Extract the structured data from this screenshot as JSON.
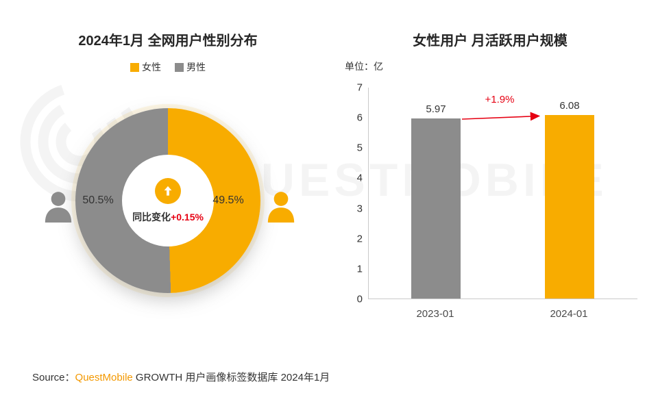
{
  "colors": {
    "female": "#F8AC00",
    "male": "#8C8C8C",
    "accent_red": "#E60012",
    "brand_orange": "#F39800",
    "text": "#333333"
  },
  "watermark": "QUESTMOBILE",
  "left_chart": {
    "title": "2024年1月 全网用户性别分布",
    "legend": [
      {
        "label": "女性",
        "color": "#F8AC00"
      },
      {
        "label": "男性",
        "color": "#8C8C8C"
      }
    ],
    "male_pct": "50.5%",
    "female_pct": "49.5%",
    "center_label": "同比变化",
    "center_change": "+0.15%"
  },
  "right_chart": {
    "title": "女性用户 月活跃用户规模",
    "unit": "单位：亿",
    "change_label": "+1.9%",
    "categories": [
      "2023-01",
      "2024-01"
    ],
    "values": [
      "5.97",
      "6.08"
    ]
  },
  "source": {
    "prefix": "Source：",
    "brand": "QuestMobile",
    "suffix": " GROWTH 用户画像标签数据库 2024年1月"
  },
  "chart_data": [
    {
      "type": "pie",
      "donut": true,
      "title": "2024年1月 全网用户性别分布",
      "labels": [
        "女性",
        "男性"
      ],
      "values": [
        49.5,
        50.5
      ],
      "colors": [
        "#F8AC00",
        "#8C8C8C"
      ],
      "annotation": "同比变化+0.15%",
      "legend_position": "top"
    },
    {
      "type": "bar",
      "title": "女性用户 月活跃用户规模",
      "ylabel": "单位：亿",
      "categories": [
        "2023-01",
        "2024-01"
      ],
      "values": [
        5.97,
        6.08
      ],
      "colors": [
        "#8C8C8C",
        "#F8AC00"
      ],
      "ylim": [
        0,
        7
      ],
      "grid": false,
      "annotation": "+1.9%"
    }
  ]
}
